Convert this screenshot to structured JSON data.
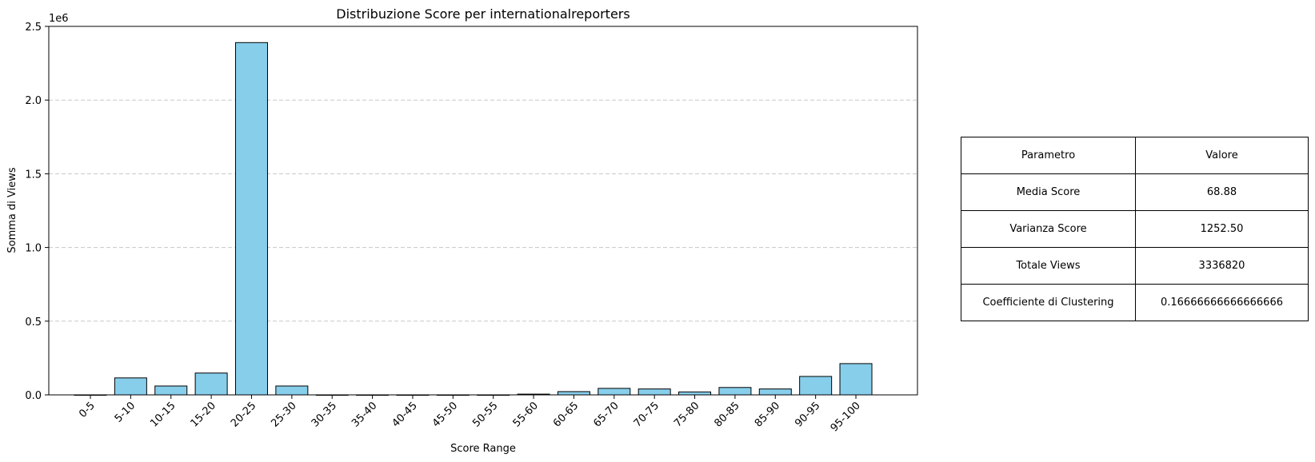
{
  "chart_data": {
    "type": "bar",
    "title": "Distribuzione Score per internationalreporters",
    "xlabel": "Score Range",
    "ylabel": "Somma di Views",
    "y_offset_label": "1e6",
    "ylim": [
      0,
      2500000
    ],
    "yticks": [
      0,
      500000,
      1000000,
      1500000,
      2000000,
      2500000
    ],
    "ytick_labels": [
      "0.0",
      "0.5",
      "1.0",
      "1.5",
      "2.0",
      "2.5"
    ],
    "grid": "y-dashed",
    "categories": [
      "0-5",
      "5-10",
      "10-15",
      "15-20",
      "20-25",
      "25-30",
      "30-35",
      "35-40",
      "40-45",
      "45-50",
      "50-55",
      "55-60",
      "60-65",
      "65-70",
      "70-75",
      "75-80",
      "80-85",
      "85-90",
      "90-95",
      "95-100"
    ],
    "values": [
      0,
      115000,
      60000,
      148000,
      2390000,
      60000,
      0,
      0,
      0,
      0,
      0,
      5000,
      22000,
      44000,
      40000,
      20000,
      50000,
      40000,
      125000,
      212000
    ],
    "bar_color": "#87ceeb",
    "edge_color": "#000000"
  },
  "table": {
    "header": [
      "Parametro",
      "Valore"
    ],
    "rows": [
      [
        "Media Score",
        "68.88"
      ],
      [
        "Varianza Score",
        "1252.50"
      ],
      [
        "Totale Views",
        "3336820"
      ],
      [
        "Coefficiente di Clustering",
        "0.16666666666666666"
      ]
    ]
  }
}
